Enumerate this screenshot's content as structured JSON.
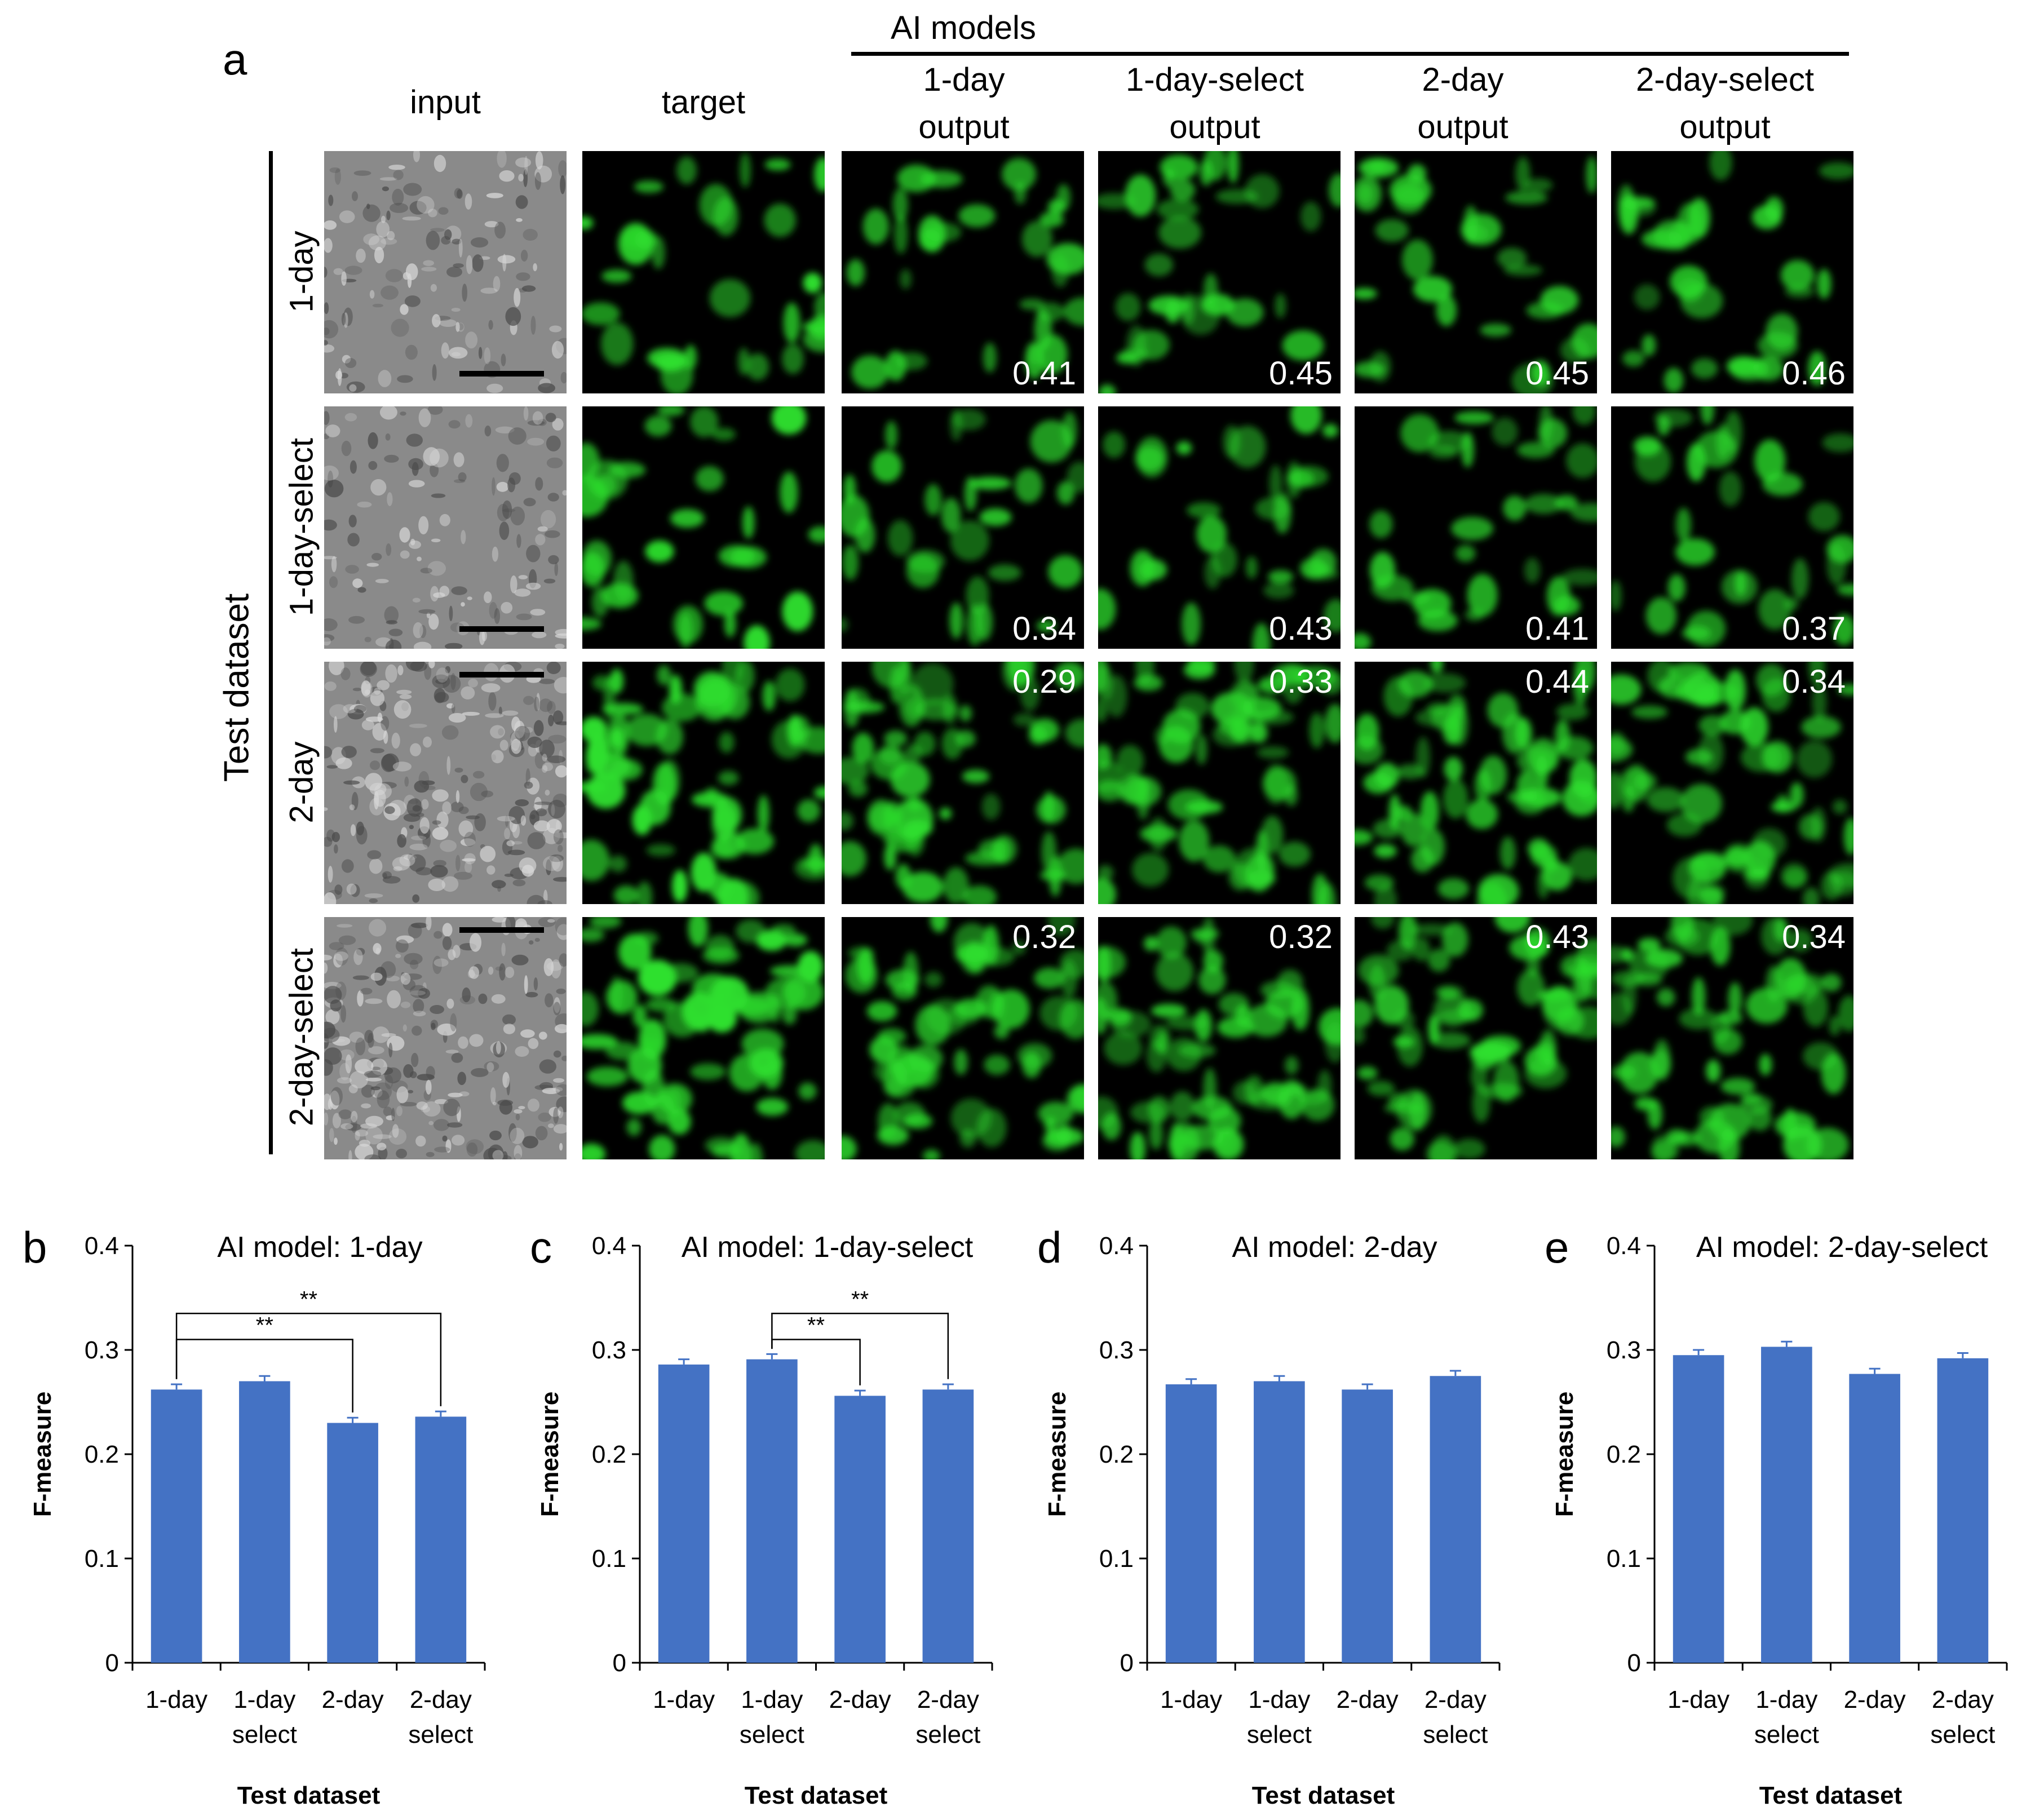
{
  "figure_a": {
    "panel_letter": "a",
    "ai_models_header": "AI models",
    "test_dataset_label": "Test dataset",
    "columns": [
      {
        "line1": "",
        "line2": "input"
      },
      {
        "line1": "",
        "line2": "target"
      },
      {
        "line1": "1-day",
        "line2": "output"
      },
      {
        "line1": "1-day-select",
        "line2": "output"
      },
      {
        "line1": "2-day",
        "line2": "output"
      },
      {
        "line1": "2-day-select",
        "line2": "output"
      }
    ],
    "rows": [
      {
        "label": "1-day",
        "scores": [
          "0.41",
          "0.45",
          "0.45",
          "0.46"
        ],
        "score_position": "bottom"
      },
      {
        "label": "1-day-select",
        "scores": [
          "0.34",
          "0.43",
          "0.41",
          "0.37"
        ],
        "score_position": "bottom"
      },
      {
        "label": "2-day",
        "scores": [
          "0.29",
          "0.33",
          "0.44",
          "0.34"
        ],
        "score_position": "top"
      },
      {
        "label": "2-day-select",
        "scores": [
          "0.32",
          "0.32",
          "0.43",
          "0.34"
        ],
        "score_position": "top"
      }
    ],
    "colors": {
      "fluorescence": "#2ee02e",
      "phase_background": "#8a8a8a",
      "tile_background": "#000000"
    }
  },
  "chart_data": [
    {
      "panel_letter": "b",
      "type": "bar",
      "title": "AI model: 1-day",
      "xlabel": "Test dataset",
      "ylabel": "F-measure",
      "categories": [
        [
          "1-day"
        ],
        [
          "1-day",
          "select"
        ],
        [
          "2-day"
        ],
        [
          "2-day",
          "select"
        ]
      ],
      "values": [
        0.262,
        0.27,
        0.23,
        0.236
      ],
      "errors": [
        0.005,
        0.005,
        0.005,
        0.005
      ],
      "ylim": [
        0,
        0.4
      ],
      "yticks": [
        "0",
        "0.1",
        "0.2",
        "0.3",
        "0.4"
      ],
      "grid": false,
      "bar_color": "#4472c4",
      "significance": [
        {
          "from": 0,
          "to": 2,
          "label": "**"
        },
        {
          "from": 0,
          "to": 3,
          "label": "**"
        }
      ]
    },
    {
      "panel_letter": "c",
      "type": "bar",
      "title": "AI model: 1-day-select",
      "xlabel": "Test dataset",
      "ylabel": "F-measure",
      "categories": [
        [
          "1-day"
        ],
        [
          "1-day",
          "select"
        ],
        [
          "2-day"
        ],
        [
          "2-day",
          "select"
        ]
      ],
      "values": [
        0.286,
        0.291,
        0.256,
        0.262
      ],
      "errors": [
        0.005,
        0.005,
        0.005,
        0.005
      ],
      "ylim": [
        0,
        0.4
      ],
      "yticks": [
        "0",
        "0.1",
        "0.2",
        "0.3",
        "0.4"
      ],
      "grid": false,
      "bar_color": "#4472c4",
      "significance": [
        {
          "from": 1,
          "to": 2,
          "label": "**"
        },
        {
          "from": 1,
          "to": 3,
          "label": "**"
        }
      ]
    },
    {
      "panel_letter": "d",
      "type": "bar",
      "title": "AI model: 2-day",
      "xlabel": "Test dataset",
      "ylabel": "F-measure",
      "categories": [
        [
          "1-day"
        ],
        [
          "1-day",
          "select"
        ],
        [
          "2-day"
        ],
        [
          "2-day",
          "select"
        ]
      ],
      "values": [
        0.267,
        0.27,
        0.262,
        0.275
      ],
      "errors": [
        0.005,
        0.005,
        0.005,
        0.005
      ],
      "ylim": [
        0,
        0.4
      ],
      "yticks": [
        "0",
        "0.1",
        "0.2",
        "0.3",
        "0.4"
      ],
      "grid": false,
      "bar_color": "#4472c4",
      "significance": []
    },
    {
      "panel_letter": "e",
      "type": "bar",
      "title": "AI model: 2-day-select",
      "xlabel": "Test dataset",
      "ylabel": "F-measure",
      "categories": [
        [
          "1-day"
        ],
        [
          "1-day",
          "select"
        ],
        [
          "2-day"
        ],
        [
          "2-day",
          "select"
        ]
      ],
      "values": [
        0.295,
        0.303,
        0.277,
        0.292
      ],
      "errors": [
        0.005,
        0.005,
        0.005,
        0.005
      ],
      "ylim": [
        0,
        0.4
      ],
      "yticks": [
        "0",
        "0.1",
        "0.2",
        "0.3",
        "0.4"
      ],
      "grid": false,
      "bar_color": "#4472c4",
      "significance": []
    }
  ]
}
